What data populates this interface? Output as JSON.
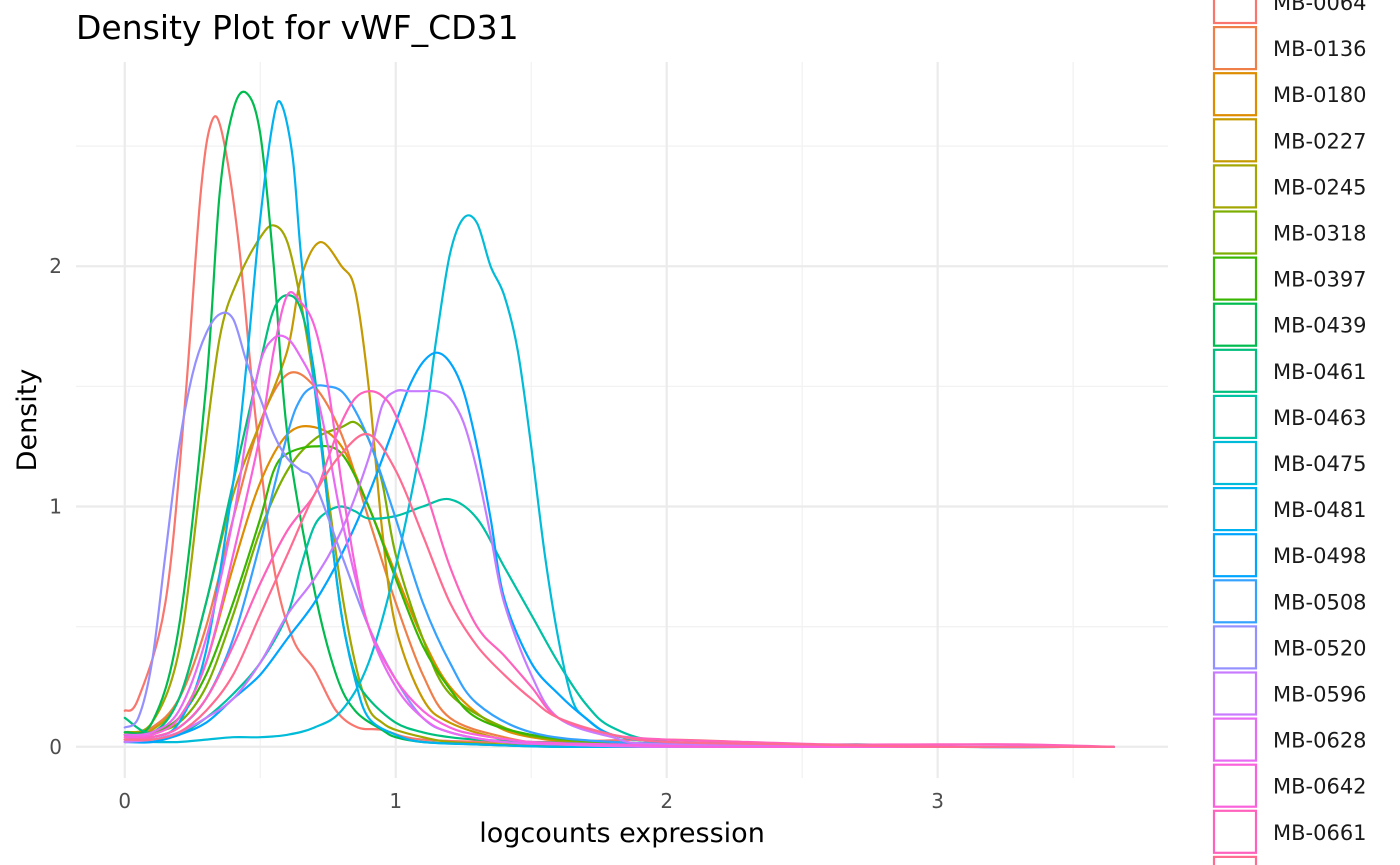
{
  "chart_data": {
    "type": "line",
    "title": "Density Plot for vWF_CD31",
    "xlabel": "logcounts expression",
    "ylabel": "Density",
    "xlim": [
      -0.18,
      3.85
    ],
    "ylim": [
      -0.13,
      2.85
    ],
    "x_ticks": [
      0,
      1,
      2,
      3
    ],
    "x_tick_labels": [
      "0",
      "1",
      "2",
      "3"
    ],
    "y_ticks": [
      0,
      1,
      2
    ],
    "y_tick_labels": [
      "0",
      "1",
      "2"
    ],
    "grid": true,
    "legend_position": "right",
    "series": [
      {
        "name": "MB-0064",
        "color": "#F8766D",
        "x": [
          0,
          0.05,
          0.15,
          0.22,
          0.28,
          0.32,
          0.36,
          0.42,
          0.48,
          0.55,
          0.62,
          0.7,
          0.78,
          0.86,
          0.95,
          1.1,
          1.5,
          2.0,
          2.5,
          3.0,
          3.65
        ],
        "y": [
          0.15,
          0.2,
          0.6,
          1.4,
          2.3,
          2.6,
          2.55,
          2.1,
          1.4,
          0.75,
          0.45,
          0.32,
          0.15,
          0.08,
          0.07,
          0.03,
          0.02,
          0.03,
          0.01,
          0,
          0
        ]
      },
      {
        "name": "MB-0136",
        "color": "#EF7F49",
        "x": [
          0,
          0.1,
          0.2,
          0.3,
          0.4,
          0.5,
          0.6,
          0.7,
          0.8,
          0.9,
          1.0,
          1.1,
          1.2,
          1.4,
          1.6,
          2.0,
          2.5,
          3.0,
          3.65
        ],
        "y": [
          0.05,
          0.08,
          0.2,
          0.5,
          0.95,
          1.35,
          1.55,
          1.5,
          1.3,
          0.95,
          0.6,
          0.3,
          0.12,
          0.04,
          0.01,
          0,
          0,
          0,
          0
        ]
      },
      {
        "name": "MB-0180",
        "color": "#DE8C00",
        "x": [
          0,
          0.1,
          0.2,
          0.3,
          0.4,
          0.5,
          0.6,
          0.7,
          0.8,
          0.9,
          1.0,
          1.1,
          1.2,
          1.35,
          1.5,
          1.8,
          2.2,
          3.0,
          3.65
        ],
        "y": [
          0.04,
          0.05,
          0.12,
          0.35,
          0.75,
          1.1,
          1.3,
          1.33,
          1.25,
          1.0,
          0.72,
          0.45,
          0.25,
          0.1,
          0.04,
          0.01,
          0,
          0,
          0
        ]
      },
      {
        "name": "MB-0227",
        "color": "#C59900",
        "x": [
          0,
          0.1,
          0.2,
          0.3,
          0.4,
          0.5,
          0.6,
          0.65,
          0.72,
          0.8,
          0.85,
          0.9,
          0.95,
          1.0,
          1.1,
          1.2,
          1.4,
          1.6,
          2.0,
          3.0,
          3.65
        ],
        "y": [
          0.05,
          0.07,
          0.2,
          0.6,
          1.05,
          1.35,
          1.65,
          1.95,
          2.1,
          2.0,
          1.9,
          1.5,
          0.9,
          0.5,
          0.2,
          0.1,
          0.03,
          0.01,
          0,
          0,
          0
        ]
      },
      {
        "name": "MB-0245",
        "color": "#A3A500",
        "x": [
          0,
          0.1,
          0.2,
          0.28,
          0.35,
          0.42,
          0.5,
          0.55,
          0.6,
          0.65,
          0.7,
          0.75,
          0.8,
          0.85,
          0.9,
          0.95,
          1.0,
          1.1,
          1.2,
          1.4,
          1.8,
          3.0,
          3.65
        ],
        "y": [
          0.06,
          0.1,
          0.4,
          1.1,
          1.7,
          1.95,
          2.12,
          2.17,
          2.1,
          1.85,
          1.5,
          1.05,
          0.65,
          0.35,
          0.16,
          0.1,
          0.07,
          0.04,
          0.02,
          0.01,
          0,
          0,
          0
        ]
      },
      {
        "name": "MB-0318",
        "color": "#7CAE00",
        "x": [
          0,
          0.1,
          0.2,
          0.3,
          0.4,
          0.5,
          0.6,
          0.7,
          0.8,
          0.85,
          0.9,
          0.95,
          1.0,
          1.1,
          1.2,
          1.4,
          1.6,
          2.0,
          3.0,
          3.65
        ],
        "y": [
          0.05,
          0.06,
          0.1,
          0.25,
          0.55,
          0.9,
          1.15,
          1.28,
          1.33,
          1.35,
          1.28,
          1.1,
          0.8,
          0.45,
          0.22,
          0.08,
          0.03,
          0.01,
          0,
          0
        ]
      },
      {
        "name": "MB-0397",
        "color": "#39B600",
        "x": [
          0,
          0.1,
          0.2,
          0.3,
          0.4,
          0.5,
          0.55,
          0.6,
          0.7,
          0.8,
          0.9,
          1.0,
          1.1,
          1.2,
          1.3,
          1.5,
          1.8,
          2.2,
          3.0,
          3.65
        ],
        "y": [
          0.05,
          0.06,
          0.12,
          0.3,
          0.6,
          0.95,
          1.15,
          1.22,
          1.25,
          1.22,
          1.0,
          0.7,
          0.42,
          0.24,
          0.12,
          0.05,
          0.02,
          0.01,
          0,
          0
        ]
      },
      {
        "name": "MB-0439",
        "color": "#00BB4E",
        "x": [
          0,
          0.1,
          0.2,
          0.3,
          0.35,
          0.4,
          0.45,
          0.5,
          0.55,
          0.6,
          0.7,
          0.78,
          0.85,
          0.95,
          1.0,
          1.1,
          1.3,
          1.6,
          2.0,
          3.0,
          3.65
        ],
        "y": [
          0.06,
          0.1,
          0.5,
          1.5,
          2.3,
          2.65,
          2.72,
          2.55,
          2.0,
          1.3,
          0.65,
          0.3,
          0.15,
          0.07,
          0.04,
          0.02,
          0.01,
          0,
          0,
          0,
          0
        ]
      },
      {
        "name": "MB-0461",
        "color": "#00BF7D",
        "x": [
          0,
          0.1,
          0.2,
          0.3,
          0.4,
          0.5,
          0.55,
          0.6,
          0.65,
          0.7,
          0.75,
          0.8,
          0.85,
          0.9,
          1.0,
          1.1,
          1.2,
          1.3,
          1.5,
          1.8,
          2.2,
          2.7,
          3.0,
          3.65
        ],
        "y": [
          0.12,
          0.06,
          0.2,
          0.6,
          1.1,
          1.6,
          1.82,
          1.88,
          1.82,
          1.55,
          1.0,
          0.55,
          0.3,
          0.2,
          0.1,
          0.06,
          0.04,
          0.03,
          0.02,
          0.01,
          0,
          0.01,
          0,
          0
        ]
      },
      {
        "name": "MB-0463",
        "color": "#00C1A3",
        "x": [
          0,
          0.1,
          0.2,
          0.3,
          0.4,
          0.5,
          0.6,
          0.65,
          0.7,
          0.75,
          0.8,
          0.85,
          0.9,
          1.0,
          1.1,
          1.2,
          1.3,
          1.4,
          1.5,
          1.6,
          1.7,
          1.8,
          2.0,
          2.5,
          3.0,
          3.65
        ],
        "y": [
          0.02,
          0.03,
          0.05,
          0.12,
          0.22,
          0.35,
          0.55,
          0.75,
          0.92,
          0.98,
          1.0,
          0.98,
          0.95,
          0.96,
          1.0,
          1.03,
          0.95,
          0.75,
          0.55,
          0.35,
          0.18,
          0.08,
          0.02,
          0.01,
          0,
          0
        ]
      },
      {
        "name": "MB-0475",
        "color": "#00BCD8",
        "x": [
          0,
          0.1,
          0.2,
          0.3,
          0.4,
          0.5,
          0.6,
          0.7,
          0.8,
          0.9,
          1.0,
          1.1,
          1.15,
          1.2,
          1.25,
          1.3,
          1.35,
          1.4,
          1.45,
          1.5,
          1.55,
          1.6,
          1.65,
          1.7,
          1.8,
          2.0,
          2.5,
          3.0,
          3.65
        ],
        "y": [
          0.02,
          0.02,
          0.02,
          0.03,
          0.04,
          0.04,
          0.05,
          0.08,
          0.15,
          0.35,
          0.75,
          1.3,
          1.7,
          2.05,
          2.2,
          2.18,
          2.0,
          1.88,
          1.65,
          1.25,
          0.8,
          0.45,
          0.2,
          0.12,
          0.05,
          0.02,
          0.01,
          0,
          0
        ]
      },
      {
        "name": "MB-0481",
        "color": "#00B3F0",
        "x": [
          0,
          0.1,
          0.2,
          0.3,
          0.4,
          0.45,
          0.5,
          0.55,
          0.58,
          0.62,
          0.65,
          0.7,
          0.75,
          0.8,
          0.85,
          0.9,
          1.0,
          1.1,
          1.3,
          1.6,
          2.0,
          3.0,
          3.65
        ],
        "y": [
          0.03,
          0.04,
          0.1,
          0.4,
          1.1,
          1.6,
          2.2,
          2.62,
          2.67,
          2.45,
          2.05,
          1.5,
          1.0,
          0.55,
          0.28,
          0.12,
          0.05,
          0.02,
          0.01,
          0,
          0,
          0,
          0
        ]
      },
      {
        "name": "MB-0498",
        "color": "#00A5FF",
        "x": [
          0,
          0.1,
          0.2,
          0.3,
          0.4,
          0.5,
          0.6,
          0.7,
          0.8,
          0.9,
          1.0,
          1.05,
          1.1,
          1.15,
          1.2,
          1.25,
          1.3,
          1.35,
          1.4,
          1.5,
          1.6,
          1.7,
          1.8,
          2.0,
          2.5,
          3.0,
          3.65
        ],
        "y": [
          0.02,
          0.02,
          0.05,
          0.1,
          0.2,
          0.3,
          0.45,
          0.6,
          0.8,
          1.05,
          1.35,
          1.5,
          1.6,
          1.64,
          1.6,
          1.48,
          1.25,
          0.95,
          0.62,
          0.35,
          0.22,
          0.12,
          0.05,
          0.02,
          0.01,
          0,
          0
        ]
      },
      {
        "name": "MB-0508",
        "color": "#35A2FF",
        "x": [
          0,
          0.1,
          0.2,
          0.3,
          0.4,
          0.5,
          0.6,
          0.65,
          0.7,
          0.75,
          0.8,
          0.85,
          0.9,
          0.95,
          1.0,
          1.1,
          1.2,
          1.3,
          1.5,
          1.8,
          2.2,
          3.0,
          3.65
        ],
        "y": [
          0.03,
          0.04,
          0.08,
          0.2,
          0.45,
          0.85,
          1.3,
          1.45,
          1.5,
          1.5,
          1.48,
          1.4,
          1.28,
          1.12,
          0.95,
          0.6,
          0.35,
          0.18,
          0.06,
          0.02,
          0.01,
          0,
          0
        ]
      },
      {
        "name": "MB-0520",
        "color": "#9590FF",
        "x": [
          0,
          0.05,
          0.1,
          0.15,
          0.2,
          0.25,
          0.3,
          0.35,
          0.4,
          0.45,
          0.5,
          0.55,
          0.6,
          0.65,
          0.7,
          0.8,
          0.9,
          1.0,
          1.1,
          1.2,
          1.4,
          1.6,
          2.0,
          3.0,
          3.65
        ],
        "y": [
          0.08,
          0.12,
          0.35,
          0.8,
          1.25,
          1.55,
          1.72,
          1.8,
          1.78,
          1.6,
          1.45,
          1.3,
          1.2,
          1.15,
          1.1,
          0.8,
          0.5,
          0.28,
          0.12,
          0.06,
          0.02,
          0.01,
          0,
          0,
          0
        ]
      },
      {
        "name": "MB-0596",
        "color": "#C77CFF",
        "x": [
          0,
          0.1,
          0.2,
          0.3,
          0.4,
          0.5,
          0.6,
          0.7,
          0.8,
          0.9,
          0.95,
          1.0,
          1.05,
          1.1,
          1.15,
          1.2,
          1.25,
          1.3,
          1.35,
          1.4,
          1.5,
          1.6,
          1.8,
          2.0,
          3.0,
          3.65
        ],
        "y": [
          0.02,
          0.03,
          0.06,
          0.12,
          0.2,
          0.35,
          0.55,
          0.7,
          0.9,
          1.2,
          1.42,
          1.48,
          1.48,
          1.48,
          1.48,
          1.45,
          1.35,
          1.15,
          0.88,
          0.6,
          0.3,
          0.12,
          0.04,
          0.01,
          0,
          0
        ]
      },
      {
        "name": "MB-0628",
        "color": "#E76BF3",
        "x": [
          0,
          0.1,
          0.2,
          0.3,
          0.4,
          0.45,
          0.5,
          0.55,
          0.6,
          0.65,
          0.7,
          0.75,
          0.8,
          0.9,
          1.0,
          1.1,
          1.2,
          1.4,
          1.6,
          2.0,
          3.0,
          3.65
        ],
        "y": [
          0.05,
          0.06,
          0.15,
          0.45,
          0.95,
          1.3,
          1.6,
          1.7,
          1.7,
          1.62,
          1.5,
          1.25,
          0.95,
          0.5,
          0.25,
          0.12,
          0.06,
          0.02,
          0.01,
          0,
          0,
          0
        ]
      },
      {
        "name": "MB-0642",
        "color": "#FA62DB",
        "x": [
          0,
          0.1,
          0.2,
          0.3,
          0.4,
          0.5,
          0.55,
          0.6,
          0.65,
          0.7,
          0.75,
          0.8,
          0.85,
          0.9,
          1.0,
          1.1,
          1.2,
          1.3,
          1.5,
          1.8,
          2.2,
          3.0,
          3.65
        ],
        "y": [
          0.04,
          0.05,
          0.12,
          0.35,
          0.8,
          1.3,
          1.65,
          1.88,
          1.85,
          1.75,
          1.5,
          1.1,
          0.75,
          0.5,
          0.28,
          0.15,
          0.08,
          0.05,
          0.02,
          0.01,
          0,
          0,
          0
        ]
      },
      {
        "name": "MB-0661",
        "color": "#FF62BC",
        "x": [
          0,
          0.1,
          0.2,
          0.3,
          0.4,
          0.5,
          0.6,
          0.7,
          0.75,
          0.8,
          0.85,
          0.9,
          0.95,
          1.0,
          1.1,
          1.2,
          1.3,
          1.4,
          1.5,
          1.6,
          1.8,
          2.0,
          2.3,
          2.6,
          3.0,
          3.3,
          3.65
        ],
        "y": [
          0.03,
          0.04,
          0.08,
          0.2,
          0.42,
          0.68,
          0.9,
          1.05,
          1.2,
          1.35,
          1.45,
          1.48,
          1.46,
          1.38,
          1.1,
          0.75,
          0.5,
          0.38,
          0.25,
          0.12,
          0.05,
          0.03,
          0.02,
          0.01,
          0.01,
          0.01,
          0
        ]
      },
      {
        "name": "",
        "color": "#FF6C91",
        "x": [
          0,
          0.1,
          0.2,
          0.3,
          0.4,
          0.5,
          0.6,
          0.7,
          0.8,
          0.9,
          1.0,
          1.1,
          1.2,
          1.3,
          1.4,
          1.5,
          1.6,
          1.8,
          2.0,
          2.5,
          3.0,
          3.65
        ],
        "y": [
          0.03,
          0.03,
          0.06,
          0.15,
          0.3,
          0.55,
          0.8,
          1.05,
          1.22,
          1.3,
          1.15,
          0.88,
          0.6,
          0.42,
          0.3,
          0.2,
          0.12,
          0.05,
          0.02,
          0.01,
          0,
          0
        ]
      }
    ]
  }
}
